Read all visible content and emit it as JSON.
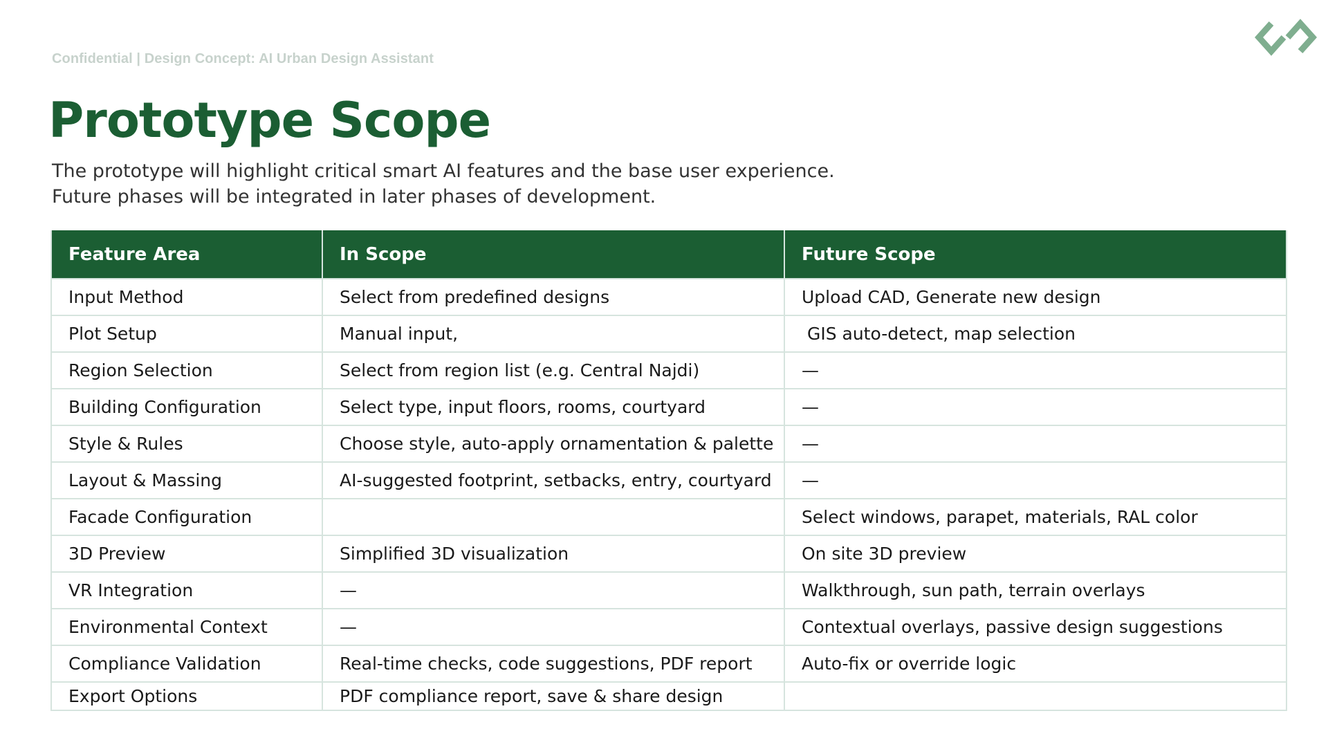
{
  "header": {
    "confidential": "Confidential | Design Concept: AI Urban Design Assistant",
    "logo_icon": "diamond-link-logo-icon",
    "logo_color": "#7fae8f"
  },
  "title": "Prototype Scope",
  "subtitle": {
    "line1": "The prototype will highlight critical smart AI features and the base user experience.",
    "line2": "Future phases will be integrated in later phases of development."
  },
  "colors": {
    "brand_green": "#1b5e33",
    "border": "#d6e4de",
    "muted_text": "#c7d2cc"
  },
  "table": {
    "headers": [
      "Feature Area",
      "In Scope",
      "Future  Scope"
    ],
    "rows": [
      [
        "Input Method",
        "Select from predefined designs",
        "Upload CAD, Generate new design"
      ],
      [
        "Plot Setup",
        "Manual input,",
        " GIS auto-detect, map selection"
      ],
      [
        "Region Selection",
        "Select from region list (e.g. Central Najdi)",
        "—"
      ],
      [
        "Building Configuration",
        "Select type, input floors, rooms, courtyard",
        "—"
      ],
      [
        "Style & Rules",
        "Choose style, auto-apply ornamentation & palette",
        "—"
      ],
      [
        "Layout & Massing",
        "AI-suggested footprint, setbacks, entry, courtyard",
        "—"
      ],
      [
        "Facade Configuration",
        "",
        "Select windows, parapet, materials, RAL color"
      ],
      [
        "3D Preview",
        "Simplified 3D visualization",
        "On site 3D preview"
      ],
      [
        "VR Integration",
        "—",
        "Walkthrough, sun path, terrain overlays"
      ],
      [
        "Environmental Context",
        "—",
        "Contextual overlays, passive design suggestions"
      ],
      [
        "Compliance Validation",
        "Real-time checks, code suggestions, PDF report",
        "Auto-fix or override logic"
      ],
      [
        "Export Options",
        "PDF compliance report, save & share design",
        ""
      ]
    ]
  }
}
